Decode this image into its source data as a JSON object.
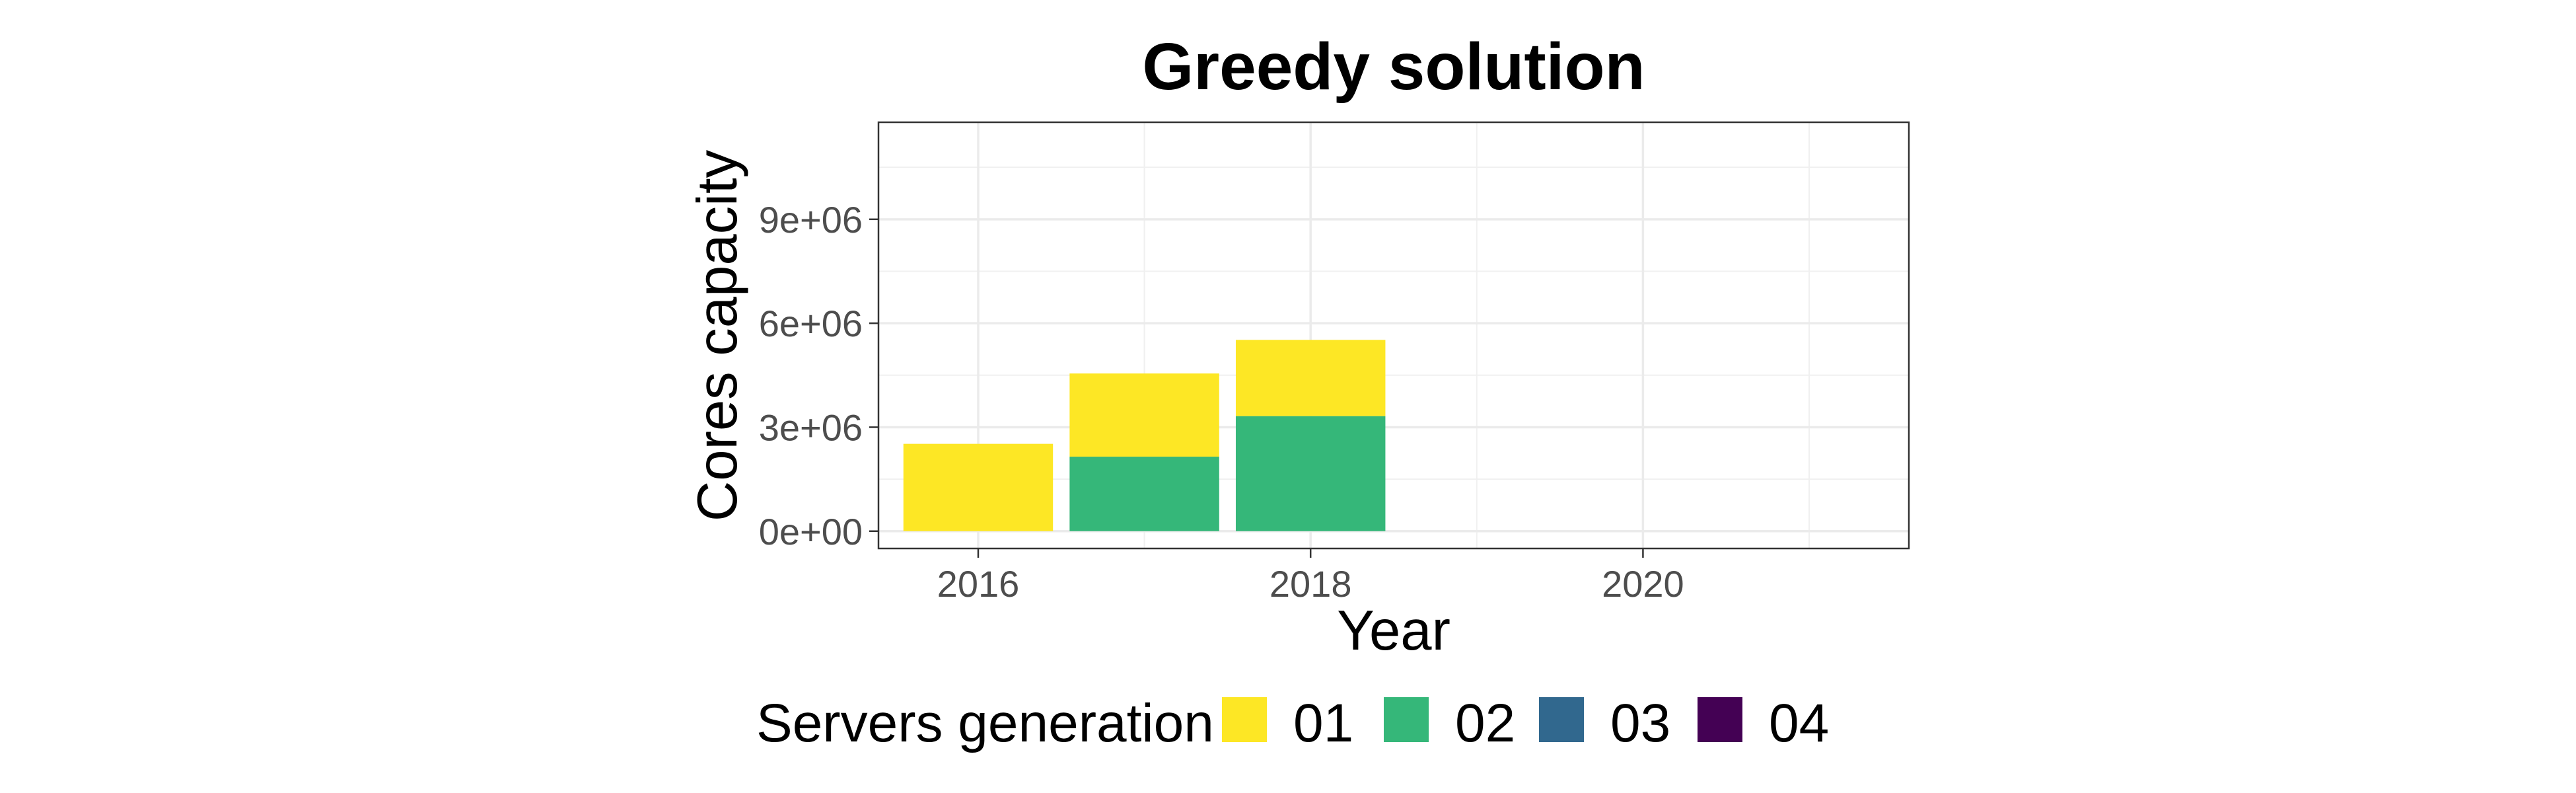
{
  "chart_data": {
    "type": "bar",
    "stacked": true,
    "title": "Greedy solution",
    "xlabel": "Year",
    "ylabel": "Cores capacity",
    "x_ticks": [
      "2016",
      "2018",
      "2020"
    ],
    "y_ticks": [
      "0e+00",
      "3e+06",
      "6e+06",
      "9e+06"
    ],
    "x_domain": [
      2015.4,
      2021.6
    ],
    "ylim": [
      -500000,
      11800000
    ],
    "grid": true,
    "legend_position": "bottom",
    "legend_title": "Servers generation",
    "categories": [
      2016,
      2017,
      2018
    ],
    "series": [
      {
        "name": "01",
        "color": "#FDE725",
        "values": [
          2520000,
          2400000,
          2200000
        ]
      },
      {
        "name": "02",
        "color": "#35B779",
        "values": [
          0,
          2150000,
          3320000
        ]
      },
      {
        "name": "03",
        "color": "#31688E",
        "values": [
          0,
          0,
          0
        ]
      },
      {
        "name": "04",
        "color": "#440154",
        "values": [
          0,
          0,
          0
        ]
      }
    ]
  }
}
